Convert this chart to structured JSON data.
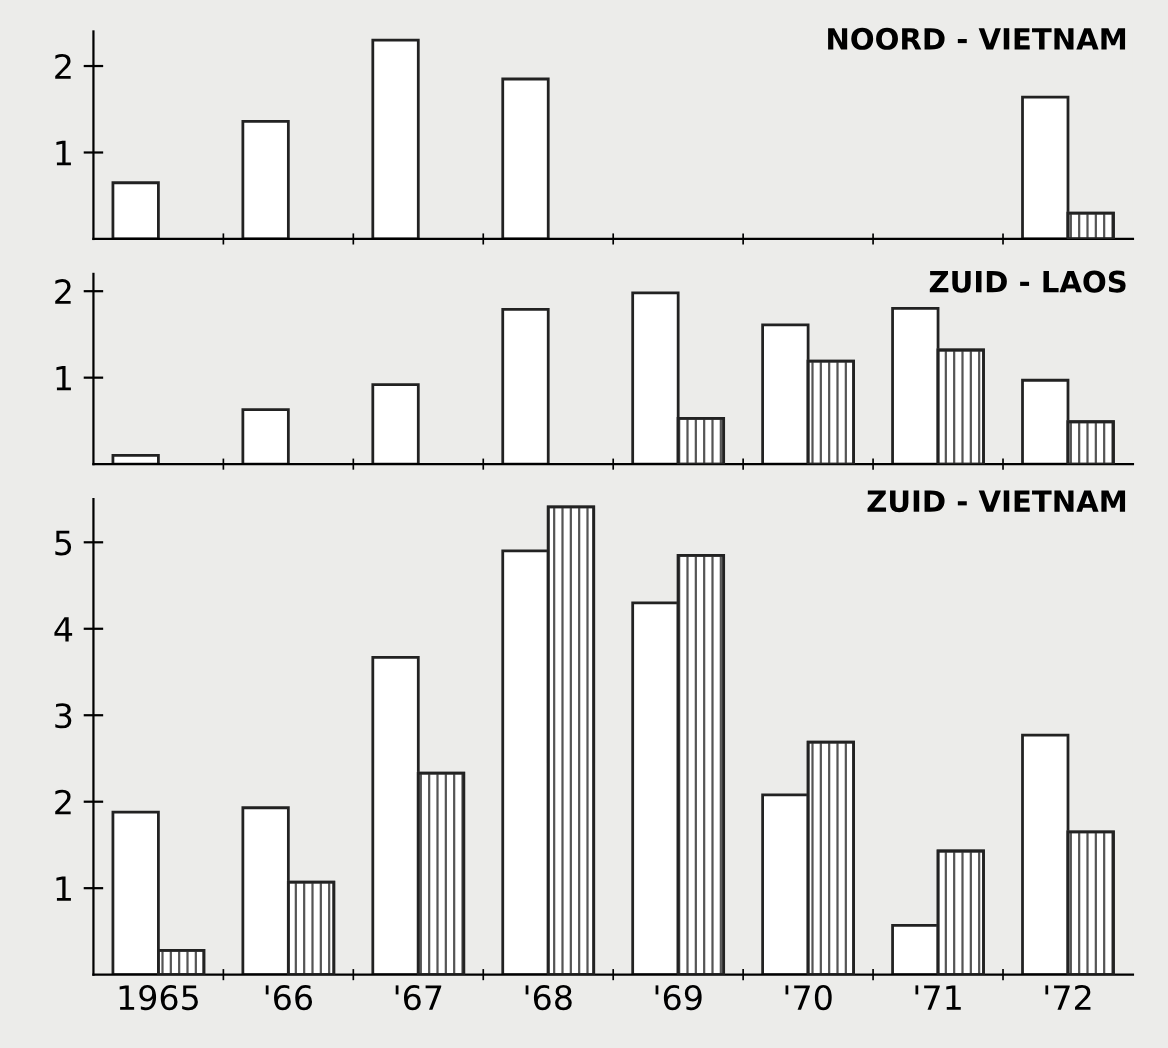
{
  "chart_data": [
    {
      "type": "bar",
      "title": "NOORD - VIETNAM",
      "categories": [
        null,
        null,
        null,
        null,
        null,
        null,
        null,
        null
      ],
      "series": [
        {
          "color": "#ffffff",
          "values": [
            0.65,
            1.36,
            2.3,
            1.85,
            null,
            null,
            null,
            1.64
          ]
        },
        {
          "color": "#555555",
          "values": [
            null,
            null,
            null,
            null,
            null,
            null,
            null,
            0.3
          ]
        }
      ],
      "ylim": [
        0,
        2.4
      ],
      "yticks": [
        1,
        2
      ],
      "tick_labels": "y",
      "grid": false,
      "legend": false
    },
    {
      "type": "bar",
      "title": "ZUID - LAOS",
      "categories": [
        null,
        null,
        null,
        null,
        null,
        null,
        null,
        null
      ],
      "series": [
        {
          "color": "#ffffff",
          "values": [
            0.1,
            0.63,
            0.92,
            1.79,
            1.98,
            1.61,
            1.8,
            0.97
          ]
        },
        {
          "color": "#555555",
          "values": [
            null,
            null,
            null,
            null,
            0.53,
            1.19,
            1.32,
            0.49
          ]
        }
      ],
      "ylim": [
        0,
        2.2
      ],
      "yticks": [
        1,
        2
      ],
      "tick_labels": "y",
      "grid": false,
      "legend": false
    },
    {
      "type": "bar",
      "title": "ZUID - VIETNAM",
      "categories": [
        "1965",
        "'66",
        "'67",
        "'68",
        "'69",
        "'70",
        "'71",
        "'72"
      ],
      "series": [
        {
          "color": "#ffffff",
          "values": [
            1.88,
            1.93,
            3.67,
            4.9,
            4.3,
            2.08,
            0.57,
            2.77
          ]
        },
        {
          "color": "#555555",
          "values": [
            0.28,
            1.07,
            2.33,
            5.41,
            4.85,
            2.69,
            1.43,
            1.65
          ]
        }
      ],
      "ylim": [
        0,
        5.5
      ],
      "yticks": [
        1,
        2,
        3,
        4,
        5
      ],
      "grid": false,
      "legend": false
    }
  ]
}
